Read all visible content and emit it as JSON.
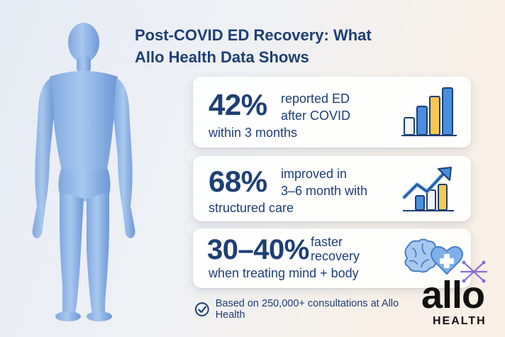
{
  "title": {
    "line1": "Post-COVID ED Recovery: What",
    "line2": "Allo Health Data Shows"
  },
  "cards": [
    {
      "stat": "42%",
      "desc_line1": "reported ED",
      "desc_line2": "after COVID",
      "desc_line3": "within 3 months",
      "icon": "bar-chart-icon"
    },
    {
      "stat": "68%",
      "desc_line1": "improved in",
      "desc_line2": "3–6 month with",
      "desc_line3": "structured care",
      "icon": "trending-up-chart-icon"
    },
    {
      "stat": "30–40%",
      "desc_line1": "faster",
      "desc_line2": "recovery",
      "desc_line3": "when treating mind + body",
      "icon": "brain-heart-icon"
    }
  ],
  "footnote": {
    "text": "Based on 250,000+ consultations at Allo Health",
    "icon": "check-circle-icon"
  },
  "brand": {
    "name": "allo",
    "sub": "HEALTH"
  },
  "colors": {
    "navy": "#1d3f74",
    "figure_blue": "#8fb4e6",
    "bar_blue": "#4a8ee0",
    "bar_yellow": "#f6c94d",
    "sparkle_purple": "#8a6bd6"
  }
}
